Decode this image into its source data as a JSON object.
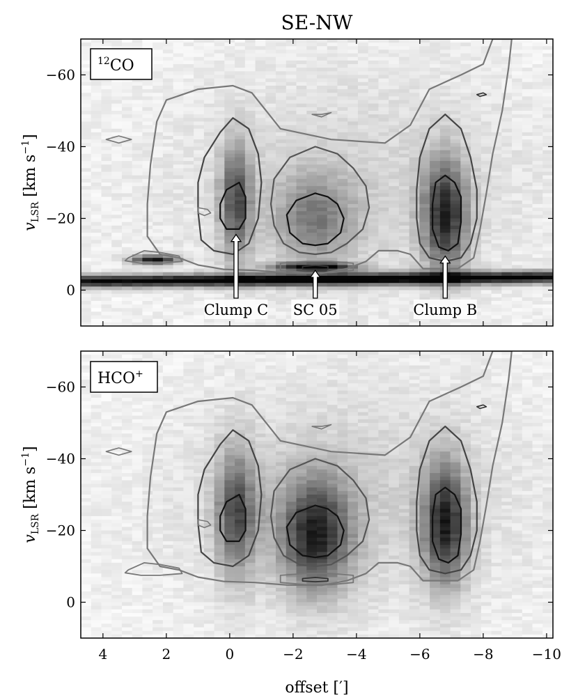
{
  "chart_data": {
    "type": "heatmap",
    "title": "SE-NW",
    "xlabel": "offset [′]",
    "xlim": [
      4.7,
      -10.2
    ],
    "x_ticks": [
      4,
      2,
      0,
      -2,
      -4,
      -6,
      -8,
      -10
    ],
    "x_tick_labels": [
      "4",
      "2",
      "0",
      "−2",
      "−4",
      "−6",
      "−8",
      "−10"
    ],
    "colormap": "gray_r",
    "panels": [
      {
        "id": "co",
        "legend": "CO",
        "legend_sup_pre": "12",
        "legend_sup_post": "",
        "ylabel_main": "v",
        "ylabel_sub": "LSR",
        "ylabel_unit": " [km s",
        "ylabel_exp": "−1",
        "ylabel_close": "]",
        "ylim": [
          -70,
          10
        ],
        "y_ticks": [
          -60,
          -40,
          -20,
          0
        ],
        "y_tick_labels": [
          "−60",
          "−40",
          "−20",
          "0"
        ],
        "features": [
          {
            "name": "Clump C",
            "offset": -0.2,
            "v": -25,
            "sx": 0.35,
            "sv": 11,
            "amp": 0.62
          },
          {
            "name": "SC 05",
            "offset": -2.7,
            "v": -20,
            "sx": 0.9,
            "sv": 9,
            "amp": 0.4
          },
          {
            "name": "Clump B",
            "offset": -6.8,
            "v": -21,
            "sx": 0.5,
            "sv": 11,
            "amp": 0.78
          },
          {
            "name": "local emission",
            "offset": -3.0,
            "v": -3,
            "sx": 20,
            "sv": 1.2,
            "amp": 1.0
          },
          {
            "name": "spot",
            "offset": 2.4,
            "v": -8.5,
            "sx": 0.5,
            "sv": 0.9,
            "amp": 0.9
          },
          {
            "name": "ridge",
            "offset": -2.7,
            "v": -6.5,
            "sx": 0.9,
            "sv": 0.8,
            "amp": 0.9
          }
        ],
        "annotations": [
          {
            "label": "Clump C",
            "offset": -0.2,
            "v_tip": -15.5
          },
          {
            "label": "SC 05",
            "offset": -2.7,
            "v_tip": -5.5
          },
          {
            "label": "Clump B",
            "offset": -6.8,
            "v_tip": -9.5
          }
        ]
      },
      {
        "id": "hco",
        "legend": "HCO",
        "legend_sup_pre": "",
        "legend_sup_post": "+",
        "ylabel_main": "v",
        "ylabel_sub": "LSR",
        "ylabel_unit": " [km s",
        "ylabel_exp": "−1",
        "ylabel_close": "]",
        "ylim": [
          -70,
          10
        ],
        "y_ticks": [
          -60,
          -40,
          -20,
          0
        ],
        "y_tick_labels": [
          "−60",
          "−40",
          "−20",
          "0"
        ],
        "features": [
          {
            "name": "Clump C",
            "offset": -0.2,
            "v": -25,
            "sx": 0.45,
            "sv": 12,
            "amp": 0.62
          },
          {
            "name": "SC 05",
            "offset": -2.7,
            "v": -19,
            "sx": 0.8,
            "sv": 11,
            "amp": 0.75
          },
          {
            "name": "Clump B",
            "offset": -6.8,
            "v": -22,
            "sx": 0.5,
            "sv": 12,
            "amp": 0.78
          }
        ],
        "annotations": []
      }
    ],
    "contours": {
      "outer": [
        [
          -0.7,
          -55
        ],
        [
          -1.6,
          -45
        ],
        [
          -3.2,
          -42
        ],
        [
          -4.9,
          -41
        ],
        [
          -5.7,
          -46
        ],
        [
          -6.3,
          -56
        ],
        [
          -7.3,
          -60
        ],
        [
          -8.0,
          -63
        ],
        [
          -8.3,
          -70
        ],
        [
          -8.9,
          -70
        ],
        [
          -8.8,
          -62
        ],
        [
          -8.6,
          -50
        ],
        [
          -8.3,
          -38
        ],
        [
          -8.1,
          -27
        ],
        [
          -7.9,
          -17
        ],
        [
          -7.7,
          -9
        ],
        [
          -7.2,
          -6
        ],
        [
          -6.1,
          -6
        ],
        [
          -5.7,
          -10
        ],
        [
          -5.3,
          -11
        ],
        [
          -4.7,
          -11
        ],
        [
          -4.3,
          -8
        ],
        [
          -3.7,
          -6
        ],
        [
          -2.9,
          -4.7
        ],
        [
          -1.8,
          -4.8
        ],
        [
          -0.8,
          -5.5
        ],
        [
          0.2,
          -5.8
        ],
        [
          1.0,
          -7.0
        ],
        [
          1.6,
          -9
        ],
        [
          2.2,
          -10
        ],
        [
          2.6,
          -15
        ],
        [
          2.6,
          -24
        ],
        [
          2.5,
          -35
        ],
        [
          2.3,
          -47
        ],
        [
          2.0,
          -53
        ],
        [
          1.0,
          -56
        ],
        [
          -0.1,
          -57
        ]
      ],
      "clumpC_mid": [
        [
          -0.1,
          -48
        ],
        [
          0.3,
          -44
        ],
        [
          0.8,
          -37
        ],
        [
          1.0,
          -30
        ],
        [
          1.0,
          -22
        ],
        [
          0.9,
          -14
        ],
        [
          0.5,
          -11
        ],
        [
          -0.1,
          -10
        ],
        [
          -0.6,
          -13
        ],
        [
          -0.9,
          -20
        ],
        [
          -1.0,
          -30
        ],
        [
          -0.9,
          -38
        ],
        [
          -0.6,
          -45
        ]
      ],
      "clumpC_in": [
        [
          -0.3,
          -30
        ],
        [
          0.1,
          -28
        ],
        [
          0.3,
          -24
        ],
        [
          0.3,
          -20
        ],
        [
          0.1,
          -17
        ],
        [
          -0.3,
          -17
        ],
        [
          -0.5,
          -20
        ],
        [
          -0.5,
          -26
        ]
      ],
      "sc05_mid": [
        [
          -2.7,
          -40
        ],
        [
          -1.9,
          -37
        ],
        [
          -1.4,
          -31
        ],
        [
          -1.3,
          -24
        ],
        [
          -1.4,
          -18
        ],
        [
          -1.7,
          -13
        ],
        [
          -2.2,
          -10.5
        ],
        [
          -2.7,
          -10
        ],
        [
          -3.2,
          -10.5
        ],
        [
          -3.7,
          -13
        ],
        [
          -4.2,
          -17
        ],
        [
          -4.4,
          -23
        ],
        [
          -4.3,
          -29
        ],
        [
          -3.9,
          -34
        ],
        [
          -3.4,
          -38
        ]
      ],
      "sc05_in": [
        [
          -2.7,
          -27
        ],
        [
          -2.1,
          -25
        ],
        [
          -1.8,
          -21
        ],
        [
          -1.9,
          -16
        ],
        [
          -2.3,
          -13
        ],
        [
          -2.7,
          -12.5
        ],
        [
          -3.1,
          -13
        ],
        [
          -3.5,
          -16
        ],
        [
          -3.6,
          -20
        ],
        [
          -3.4,
          -24
        ],
        [
          -3.1,
          -26
        ]
      ],
      "clumpB_mid": [
        [
          -6.8,
          -49
        ],
        [
          -6.3,
          -45
        ],
        [
          -6.0,
          -37
        ],
        [
          -5.9,
          -28
        ],
        [
          -5.9,
          -20
        ],
        [
          -6.0,
          -13
        ],
        [
          -6.3,
          -9
        ],
        [
          -6.8,
          -8
        ],
        [
          -7.3,
          -9
        ],
        [
          -7.6,
          -13
        ],
        [
          -7.8,
          -20
        ],
        [
          -7.8,
          -28
        ],
        [
          -7.6,
          -37
        ],
        [
          -7.3,
          -45
        ]
      ],
      "clumpB_in": [
        [
          -6.8,
          -32
        ],
        [
          -6.5,
          -30
        ],
        [
          -6.4,
          -24
        ],
        [
          -6.4,
          -17
        ],
        [
          -6.6,
          -12
        ],
        [
          -6.9,
          -11
        ],
        [
          -7.2,
          -13
        ],
        [
          -7.3,
          -19
        ],
        [
          -7.3,
          -26
        ],
        [
          -7.1,
          -30
        ]
      ],
      "ridge_out": [
        [
          -1.6,
          -7.5
        ],
        [
          -2.4,
          -8
        ],
        [
          -3.2,
          -8
        ],
        [
          -3.9,
          -7.5
        ],
        [
          -3.9,
          -5.5
        ],
        [
          -3.2,
          -4.9
        ],
        [
          -2.4,
          -4.9
        ],
        [
          -1.6,
          -5.5
        ]
      ],
      "ridge_in": [
        [
          -2.3,
          -6.6
        ],
        [
          -2.7,
          -6.9
        ],
        [
          -3.1,
          -6.6
        ],
        [
          -3.1,
          -5.9
        ],
        [
          -2.7,
          -5.7
        ],
        [
          -2.3,
          -5.9
        ]
      ],
      "spot": [
        [
          3.2,
          -9
        ],
        [
          2.7,
          -11
        ],
        [
          2.2,
          -10.5
        ],
        [
          1.6,
          -9.5
        ],
        [
          1.5,
          -8
        ],
        [
          2.2,
          -7.5
        ],
        [
          2.8,
          -7.5
        ],
        [
          3.3,
          -8.2
        ]
      ],
      "blob1": [
        [
          1.0,
          -23
        ],
        [
          0.7,
          -22.5
        ],
        [
          0.6,
          -21.5
        ],
        [
          0.8,
          -20.8
        ],
        [
          1.0,
          -21.5
        ]
      ],
      "blob2": [
        [
          -3.2,
          -49.5
        ],
        [
          -2.9,
          -49
        ],
        [
          -2.6,
          -49
        ],
        [
          -2.9,
          -48.3
        ]
      ],
      "blob3": [
        [
          3.9,
          -42
        ],
        [
          3.5,
          -41
        ],
        [
          3.1,
          -42
        ],
        [
          3.5,
          -43
        ]
      ],
      "blob4": [
        [
          -8.0,
          -55
        ],
        [
          -7.8,
          -54.5
        ],
        [
          -7.9,
          -54
        ],
        [
          -8.1,
          -54.5
        ]
      ]
    }
  }
}
